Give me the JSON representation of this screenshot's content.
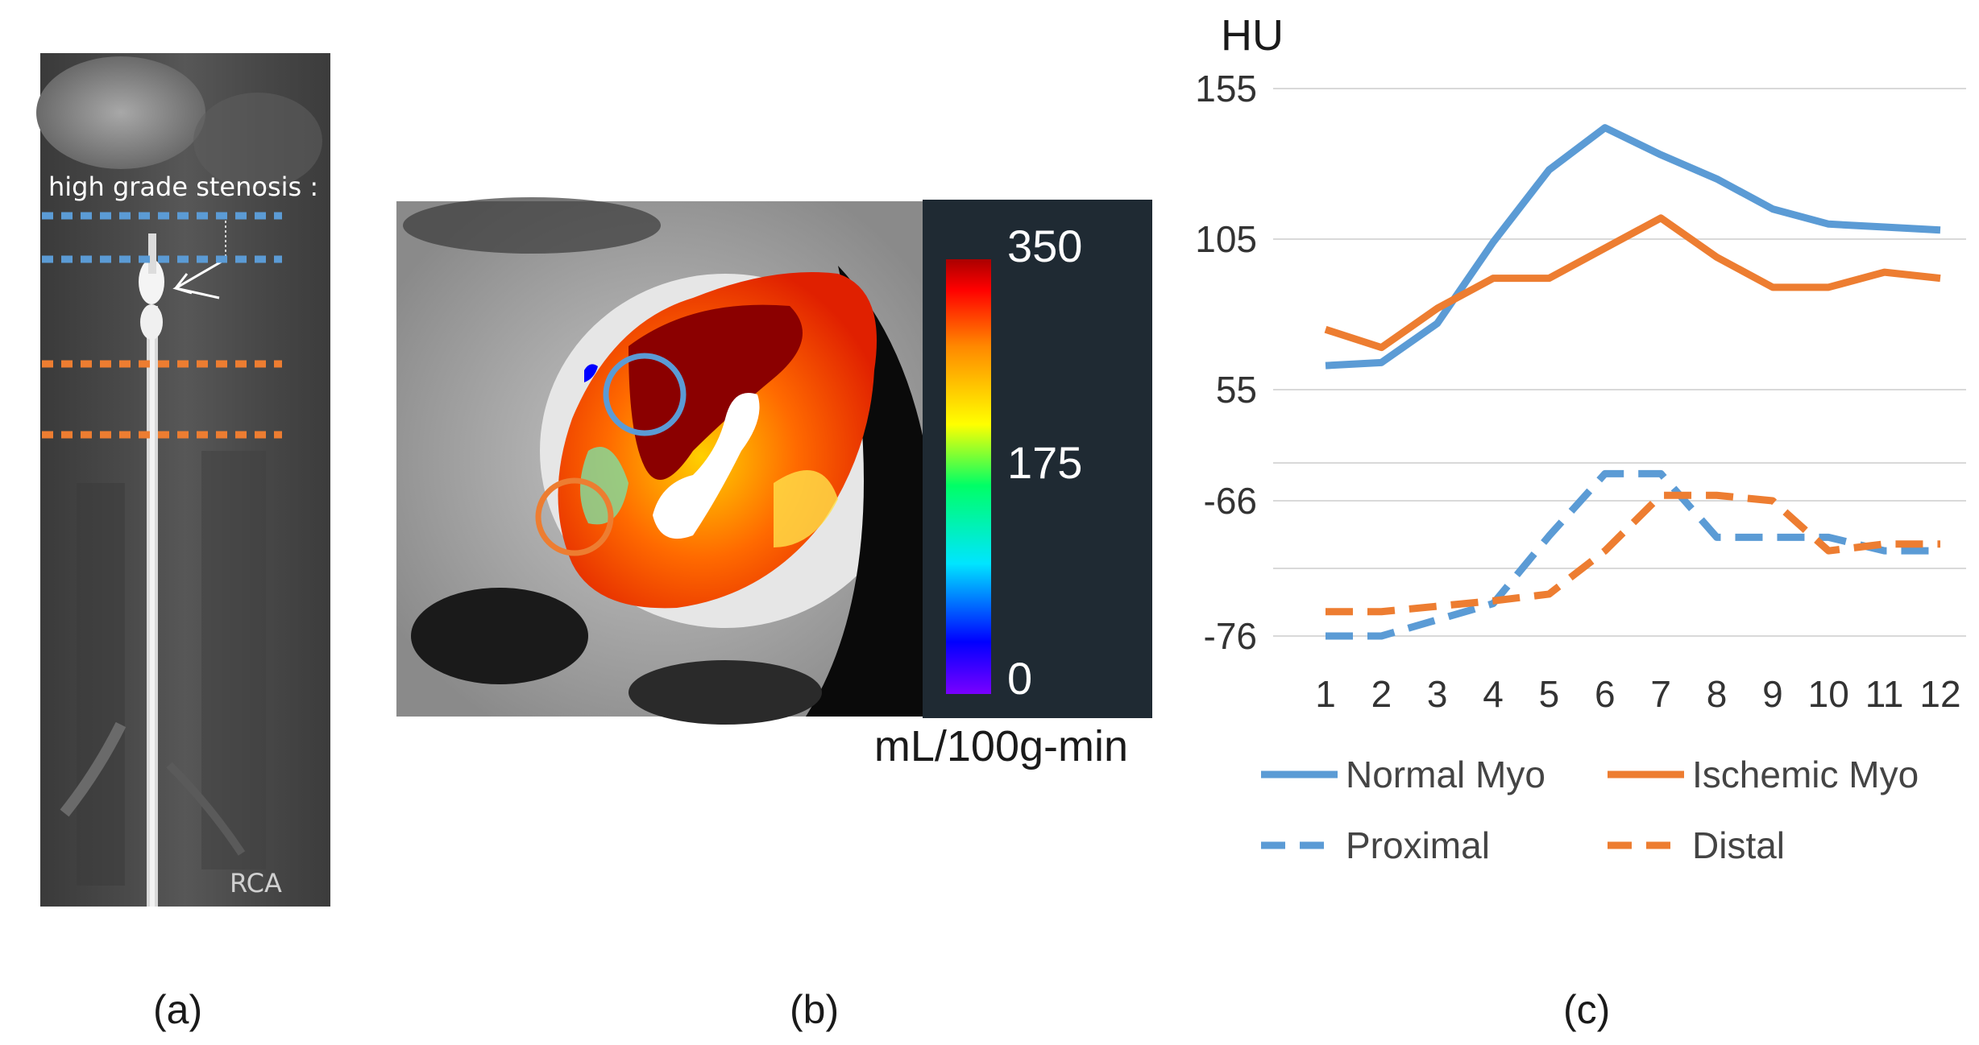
{
  "panel_a": {
    "annotation": "high grade stenosis :",
    "vessel_label": "RCA",
    "caption": "(a)"
  },
  "panel_b": {
    "colorbar": {
      "max_label": "350",
      "mid_label": "175",
      "min_label": "0",
      "colors": [
        "#7a00ff",
        "#0000ff",
        "#00e5ff",
        "#00ff66",
        "#ffff00",
        "#ff8800",
        "#ff0000",
        "#aa0000"
      ]
    },
    "units": "mL/100g-min",
    "caption": "(b)",
    "roi_colors": {
      "normal": "#5b9bd5",
      "ischemic": "#ed7d31"
    }
  },
  "panel_c": {
    "caption": "(c)"
  },
  "chart_data": {
    "type": "line",
    "ylabel": "HU",
    "y_tick_labels": [
      "155",
      "105",
      "55",
      "-66",
      "-76"
    ],
    "categories": [
      "1",
      "2",
      "3",
      "4",
      "5",
      "6",
      "7",
      "8",
      "9",
      "10",
      "11",
      "12"
    ],
    "gridlines": true,
    "legend_position": "bottom",
    "series": [
      {
        "name": "Normal Myo",
        "style": "solid",
        "color": "#5b9bd5",
        "axis": "upper",
        "values": [
          63,
          64,
          77,
          104,
          128,
          142,
          133,
          125,
          115,
          110,
          109,
          108
        ]
      },
      {
        "name": "Ischemic Myo",
        "style": "solid",
        "color": "#ed7d31",
        "axis": "upper",
        "values": [
          75,
          69,
          82,
          92,
          92,
          102,
          112,
          99,
          89,
          89,
          94,
          92
        ]
      },
      {
        "name": "Proximal",
        "style": "dashed",
        "color": "#5b9bd5",
        "axis": "lower",
        "values": [
          -76.0,
          -76.0,
          -74.8,
          -73.6,
          -68.6,
          -64.0,
          -64.0,
          -68.7,
          -68.7,
          -68.7,
          -69.7,
          -69.7
        ]
      },
      {
        "name": "Distal",
        "style": "dashed",
        "color": "#ed7d31",
        "axis": "lower",
        "values": [
          -74.2,
          -74.2,
          -73.8,
          -73.4,
          -72.9,
          -69.7,
          -65.6,
          -65.6,
          -66.0,
          -69.7,
          -69.2,
          -69.2
        ]
      }
    ],
    "upper_axis": {
      "range": [
        55,
        155
      ],
      "ticks": [
        55,
        105,
        155
      ]
    },
    "lower_axis": {
      "range": [
        -76,
        -66
      ],
      "ticks": [
        -76,
        -66
      ]
    }
  }
}
